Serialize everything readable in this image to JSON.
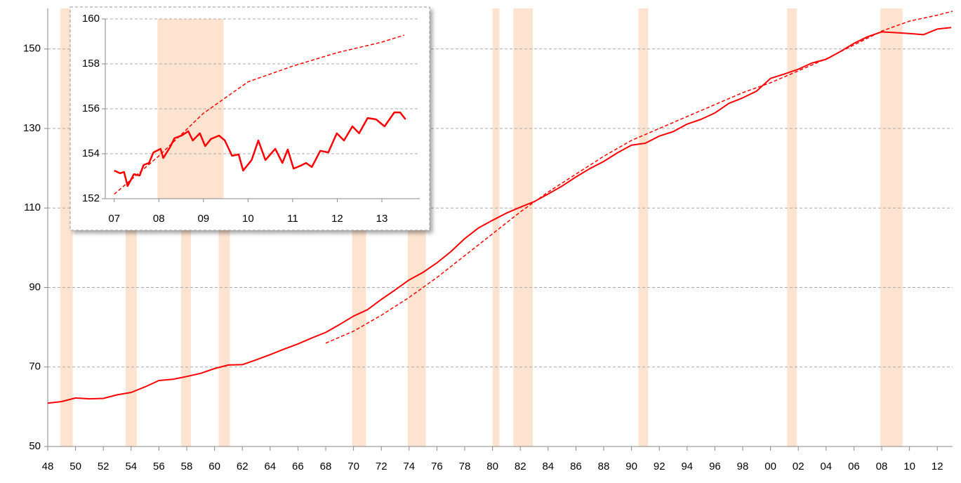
{
  "chart_data": [
    {
      "type": "line",
      "xlim": [
        1948,
        2013.1
      ],
      "ylim": [
        50,
        160.2
      ],
      "xticks": [
        {
          "value": 1948,
          "label": "48"
        },
        {
          "value": 1950,
          "label": "50"
        },
        {
          "value": 1952,
          "label": "52"
        },
        {
          "value": 1954,
          "label": "54"
        },
        {
          "value": 1956,
          "label": "56"
        },
        {
          "value": 1958,
          "label": "58"
        },
        {
          "value": 1960,
          "label": "60"
        },
        {
          "value": 1962,
          "label": "62"
        },
        {
          "value": 1964,
          "label": "64"
        },
        {
          "value": 1966,
          "label": "66"
        },
        {
          "value": 1968,
          "label": "68"
        },
        {
          "value": 1970,
          "label": "70"
        },
        {
          "value": 1972,
          "label": "72"
        },
        {
          "value": 1974,
          "label": "74"
        },
        {
          "value": 1976,
          "label": "76"
        },
        {
          "value": 1978,
          "label": "78"
        },
        {
          "value": 1980,
          "label": "80"
        },
        {
          "value": 1982,
          "label": "82"
        },
        {
          "value": 1984,
          "label": "84"
        },
        {
          "value": 1986,
          "label": "86"
        },
        {
          "value": 1988,
          "label": "88"
        },
        {
          "value": 1990,
          "label": "90"
        },
        {
          "value": 1992,
          "label": "92"
        },
        {
          "value": 1994,
          "label": "94"
        },
        {
          "value": 1996,
          "label": "96"
        },
        {
          "value": 1998,
          "label": "98"
        },
        {
          "value": 2000,
          "label": "00"
        },
        {
          "value": 2002,
          "label": "02"
        },
        {
          "value": 2004,
          "label": "04"
        },
        {
          "value": 2006,
          "label": "06"
        },
        {
          "value": 2008,
          "label": "08"
        },
        {
          "value": 2010,
          "label": "10"
        },
        {
          "value": 2012,
          "label": "12"
        }
      ],
      "yticks": [
        50,
        70,
        90,
        110,
        130,
        150
      ],
      "grid": true,
      "shade_color": "#fde3d0",
      "shaded_ranges": [
        [
          1948.9,
          1949.8
        ],
        [
          1953.6,
          1954.4
        ],
        [
          1957.6,
          1958.3
        ],
        [
          1960.3,
          1961.1
        ],
        [
          1969.9,
          1970.9
        ],
        [
          1973.9,
          1975.2
        ],
        [
          1980.0,
          1980.5
        ],
        [
          1981.5,
          1982.9
        ],
        [
          1990.5,
          1991.2
        ],
        [
          2001.2,
          2001.9
        ],
        [
          2007.9,
          2009.5
        ]
      ],
      "series": [
        {
          "color": "#ff0000",
          "dashed": false,
          "x": [
            1948,
            1949,
            1950,
            1951,
            1952,
            1953,
            1954,
            1955,
            1956,
            1957,
            1958,
            1959,
            1960,
            1961,
            1962,
            1963,
            1964,
            1965,
            1966,
            1967,
            1968,
            1969,
            1970,
            1971,
            1972,
            1973,
            1974,
            1975,
            1976,
            1977,
            1978,
            1979,
            1980,
            1981,
            1982,
            1983,
            1984,
            1985,
            1986,
            1987,
            1988,
            1989,
            1990,
            1991,
            1992,
            1993,
            1994,
            1995,
            1996,
            1997,
            1998,
            1999,
            2000,
            2001,
            2002,
            2003,
            2004,
            2005,
            2006,
            2007,
            2008,
            2009,
            2010,
            2011,
            2012,
            2013
          ],
          "values": [
            60.9,
            61.3,
            62.2,
            62.0,
            62.1,
            63.0,
            63.6,
            65.0,
            66.6,
            66.9,
            67.6,
            68.4,
            69.6,
            70.5,
            70.6,
            71.8,
            73.1,
            74.5,
            75.8,
            77.3,
            78.7,
            80.7,
            82.8,
            84.4,
            87.0,
            89.4,
            91.9,
            93.8,
            96.2,
            99.0,
            102.3,
            105.0,
            106.9,
            108.7,
            110.2,
            111.6,
            113.5,
            115.5,
            117.8,
            119.9,
            121.7,
            123.9,
            125.8,
            126.3,
            128.1,
            129.2,
            131.1,
            132.3,
            133.9,
            136.3,
            137.7,
            139.4,
            142.6,
            143.7,
            144.9,
            146.5,
            147.4,
            149.3,
            151.4,
            153.1,
            154.3,
            154.1,
            153.9,
            153.6,
            155.0,
            155.4
          ]
        },
        {
          "color": "#ff0000",
          "dashed": true,
          "x": [
            1968,
            1970,
            1972,
            1974,
            1976,
            1978,
            1980,
            1982,
            1984,
            1986,
            1988,
            1990,
            1992,
            1994,
            1996,
            1998,
            2000,
            2002,
            2004,
            2006,
            2008,
            2010,
            2012,
            2013.1
          ],
          "values": [
            76,
            79,
            83,
            87.5,
            92.5,
            98,
            103.5,
            109,
            114,
            118.5,
            123,
            127,
            130,
            133,
            136,
            139,
            141.5,
            144.5,
            147.5,
            151,
            154.5,
            157,
            158.5,
            159.5
          ]
        }
      ]
    },
    {
      "type": "line",
      "xlim": [
        2006.8,
        2013.85
      ],
      "ylim": [
        152,
        160
      ],
      "xticks": [
        {
          "value": 2007,
          "label": "07"
        },
        {
          "value": 2008,
          "label": "08"
        },
        {
          "value": 2009,
          "label": "09"
        },
        {
          "value": 2010,
          "label": "10"
        },
        {
          "value": 2011,
          "label": "11"
        },
        {
          "value": 2012,
          "label": "12"
        },
        {
          "value": 2013,
          "label": "13"
        }
      ],
      "yticks": [
        152,
        154,
        156,
        158,
        160
      ],
      "grid": true,
      "shade_color": "#fde3d0",
      "shaded_ranges": [
        [
          2007.97,
          2009.45
        ]
      ],
      "series": [
        {
          "color": "#ff0000",
          "dashed": false,
          "x": [
            2007.0,
            2007.13,
            2007.22,
            2007.3,
            2007.44,
            2007.57,
            2007.66,
            2007.78,
            2007.88,
            2008.04,
            2008.1,
            2008.25,
            2008.35,
            2008.51,
            2008.66,
            2008.76,
            2008.92,
            2009.04,
            2009.17,
            2009.35,
            2009.48,
            2009.64,
            2009.79,
            2009.89,
            2010.08,
            2010.23,
            2010.39,
            2010.61,
            2010.77,
            2010.89,
            2011.02,
            2011.18,
            2011.3,
            2011.43,
            2011.62,
            2011.8,
            2011.99,
            2012.15,
            2012.34,
            2012.49,
            2012.68,
            2012.87,
            2013.06,
            2013.28,
            2013.41,
            2013.53
          ],
          "values": [
            153.25,
            153.13,
            153.19,
            152.56,
            153.09,
            153.03,
            153.5,
            153.59,
            154.06,
            154.22,
            153.81,
            154.28,
            154.69,
            154.81,
            155.0,
            154.59,
            154.91,
            154.34,
            154.66,
            154.81,
            154.59,
            153.91,
            153.97,
            153.25,
            153.72,
            154.59,
            153.72,
            154.22,
            153.59,
            154.19,
            153.34,
            153.47,
            153.59,
            153.41,
            154.13,
            154.06,
            154.91,
            154.59,
            155.22,
            154.91,
            155.59,
            155.53,
            155.22,
            155.84,
            155.84,
            155.53
          ]
        },
        {
          "color": "#ff0000",
          "dashed": true,
          "x": [
            2007.0,
            2008.0,
            2009.0,
            2010.0,
            2011.0,
            2012.0,
            2013.0,
            2013.5
          ],
          "values": [
            152.2,
            153.9,
            155.8,
            157.2,
            157.9,
            158.5,
            158.97,
            159.28
          ]
        }
      ]
    }
  ]
}
